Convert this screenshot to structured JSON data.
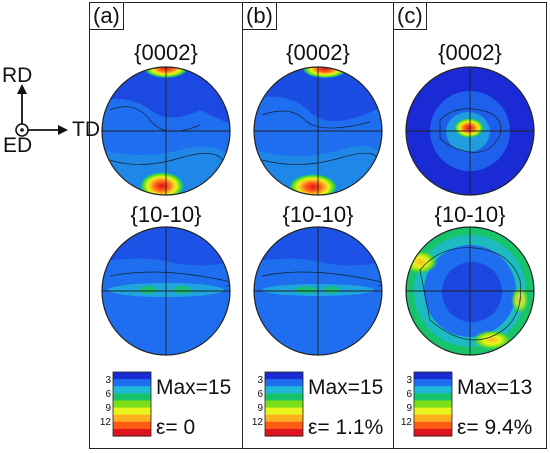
{
  "axes": {
    "rd": "RD",
    "td": "TD",
    "ed": "ED"
  },
  "pole_titles": {
    "basal": "{0002}",
    "prism": "{10-10}"
  },
  "colorbar_ticks": [
    "3",
    "6",
    "9",
    "12"
  ],
  "colors": {
    "scale": [
      "#1a2bd6",
      "#1f6ef0",
      "#1fb8d8",
      "#17c46a",
      "#7be01a",
      "#e8f51e",
      "#ffb020",
      "#ff5a14",
      "#e0141e"
    ]
  },
  "panels": [
    {
      "tag": "(a)",
      "max": "Max=15",
      "strain": "ε= 0"
    },
    {
      "tag": "(b)",
      "max": "Max=15",
      "strain": "ε= 1.1%"
    },
    {
      "tag": "(c)",
      "max": "Max=13",
      "strain": "ε= 9.4%"
    }
  ]
}
